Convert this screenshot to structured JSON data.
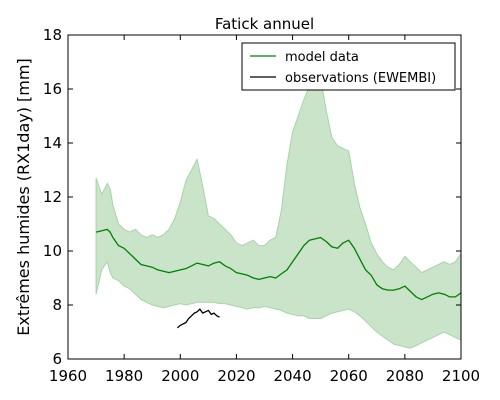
{
  "chart_data": {
    "type": "line",
    "title": "Fatick annuel",
    "xlabel": "",
    "ylabel": "Extrêmes humides (RX1day) [mm]",
    "xlim": [
      1960,
      2100
    ],
    "ylim": [
      6,
      18
    ],
    "xticks": [
      "1960",
      "1980",
      "2000",
      "2020",
      "2040",
      "2060",
      "2080",
      "2100"
    ],
    "yticks": [
      "6",
      "8",
      "10",
      "12",
      "14",
      "16",
      "18"
    ],
    "legend_position": "top-right",
    "grid": false,
    "colors": {
      "model": "#008000",
      "band": "#c9e4c9",
      "band_edge": "#a8d3a8",
      "observations": "#000000"
    },
    "series": [
      {
        "name": "model data",
        "x": [
          1970,
          1972,
          1974,
          1975,
          1976,
          1978,
          1980,
          1982,
          1984,
          1986,
          1988,
          1990,
          1992,
          1994,
          1996,
          1998,
          2000,
          2002,
          2004,
          2006,
          2008,
          2010,
          2012,
          2014,
          2016,
          2018,
          2020,
          2022,
          2024,
          2026,
          2028,
          2030,
          2032,
          2034,
          2036,
          2038,
          2040,
          2042,
          2044,
          2046,
          2048,
          2050,
          2052,
          2054,
          2056,
          2058,
          2060,
          2062,
          2064,
          2066,
          2068,
          2070,
          2072,
          2074,
          2076,
          2078,
          2080,
          2082,
          2084,
          2086,
          2088,
          2090,
          2092,
          2094,
          2096,
          2098,
          2100
        ],
        "values": [
          10.7,
          10.75,
          10.8,
          10.7,
          10.5,
          10.2,
          10.1,
          9.9,
          9.7,
          9.5,
          9.45,
          9.4,
          9.3,
          9.25,
          9.2,
          9.25,
          9.3,
          9.35,
          9.45,
          9.55,
          9.5,
          9.45,
          9.55,
          9.6,
          9.45,
          9.35,
          9.2,
          9.15,
          9.1,
          9.0,
          8.95,
          9.0,
          9.05,
          9.0,
          9.15,
          9.3,
          9.6,
          9.9,
          10.2,
          10.4,
          10.45,
          10.5,
          10.35,
          10.15,
          10.1,
          10.3,
          10.4,
          10.1,
          9.7,
          9.3,
          9.1,
          8.75,
          8.6,
          8.55,
          8.55,
          8.6,
          8.7,
          8.5,
          8.3,
          8.2,
          8.3,
          8.4,
          8.45,
          8.4,
          8.3,
          8.3,
          8.45
        ],
        "lower": [
          8.4,
          9.3,
          9.6,
          9.2,
          9.0,
          8.9,
          8.7,
          8.6,
          8.4,
          8.2,
          8.1,
          8.0,
          7.95,
          7.9,
          7.95,
          8.0,
          8.05,
          8.0,
          8.05,
          8.1,
          8.1,
          8.1,
          8.1,
          8.05,
          8.05,
          8.0,
          7.95,
          7.9,
          7.85,
          7.9,
          7.9,
          7.95,
          7.9,
          7.85,
          7.8,
          7.7,
          7.65,
          7.6,
          7.6,
          7.5,
          7.5,
          7.5,
          7.6,
          7.7,
          7.75,
          7.8,
          7.85,
          7.75,
          7.6,
          7.4,
          7.2,
          7.0,
          6.85,
          6.7,
          6.55,
          6.5,
          6.45,
          6.4,
          6.5,
          6.6,
          6.7,
          6.8,
          6.9,
          7.0,
          6.9,
          6.8,
          6.7
        ],
        "upper": [
          12.7,
          12.1,
          12.5,
          12.3,
          11.7,
          11.0,
          10.8,
          10.7,
          10.8,
          10.6,
          10.5,
          10.6,
          10.5,
          10.6,
          10.8,
          11.2,
          11.8,
          12.6,
          13.0,
          13.4,
          12.4,
          11.3,
          11.2,
          11.0,
          10.8,
          10.6,
          10.3,
          10.2,
          10.3,
          10.4,
          10.2,
          10.2,
          10.4,
          10.5,
          11.5,
          13.2,
          14.4,
          15.0,
          15.6,
          16.1,
          16.2,
          16.4,
          15.2,
          14.2,
          13.9,
          13.8,
          13.7,
          12.5,
          11.6,
          11.0,
          10.3,
          9.9,
          9.6,
          9.4,
          9.3,
          9.5,
          9.8,
          9.6,
          9.4,
          9.2,
          9.3,
          9.4,
          9.5,
          9.6,
          9.5,
          9.6,
          9.9
        ]
      },
      {
        "name": "observations (EWEMBI)",
        "x": [
          1999,
          2000,
          2001,
          2002,
          2003,
          2004,
          2005,
          2006,
          2007,
          2008,
          2009,
          2010,
          2011,
          2012,
          2013,
          2014
        ],
        "values": [
          7.15,
          7.25,
          7.3,
          7.35,
          7.5,
          7.6,
          7.7,
          7.75,
          7.85,
          7.7,
          7.75,
          7.8,
          7.65,
          7.7,
          7.6,
          7.55
        ]
      }
    ]
  }
}
